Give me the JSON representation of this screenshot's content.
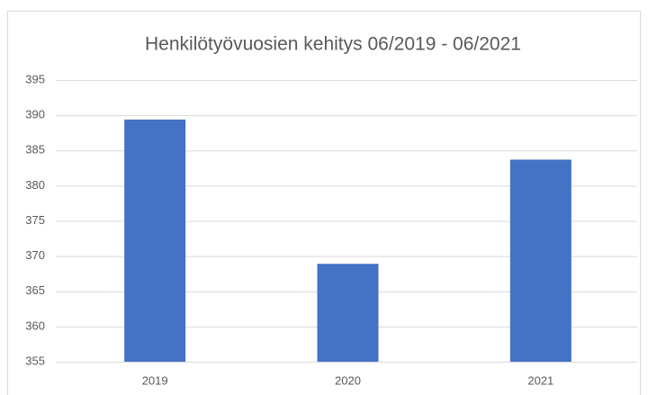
{
  "chart_data": {
    "type": "bar",
    "title": "Henkilötyövuosien kehitys 06/2019 - 06/2021",
    "categories": [
      "2019",
      "2020",
      "2021"
    ],
    "values": [
      389.4,
      368.9,
      383.7
    ],
    "color": "#4472c4",
    "ylim": [
      355,
      395
    ],
    "yticks": [
      355,
      360,
      365,
      370,
      375,
      380,
      385,
      390,
      395
    ],
    "grid": true
  }
}
